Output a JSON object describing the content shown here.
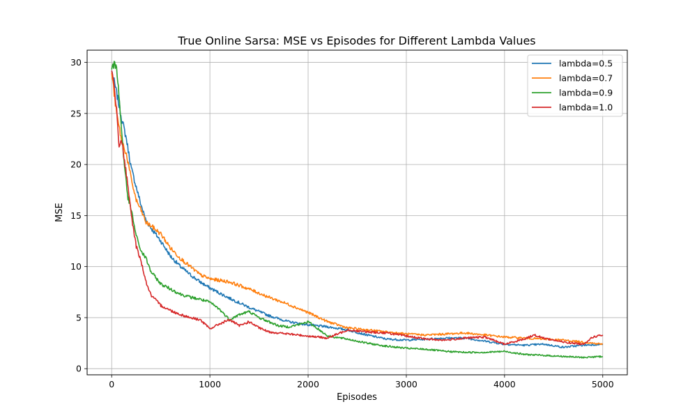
{
  "chart_data": {
    "type": "line",
    "title": "True Online Sarsa: MSE vs Episodes for Different Lambda Values",
    "xlabel": "Episodes",
    "ylabel": "MSE",
    "xlim": [
      -250,
      5250
    ],
    "ylim": [
      -0.6,
      31.2
    ],
    "xticks": [
      0,
      1000,
      2000,
      3000,
      4000,
      5000
    ],
    "yticks": [
      0,
      5,
      10,
      15,
      20,
      25,
      30
    ],
    "grid": true,
    "legend_position": "top-right",
    "series": [
      {
        "name": "lambda=0.5",
        "color": "#1f77b4",
        "x": [
          0,
          50,
          100,
          150,
          200,
          250,
          300,
          350,
          400,
          500,
          600,
          700,
          800,
          900,
          1000,
          1200,
          1400,
          1600,
          1800,
          2000,
          2200,
          2400,
          2600,
          2800,
          3000,
          3200,
          3400,
          3600,
          3800,
          4000,
          4200,
          4400,
          4600,
          4800,
          5000
        ],
        "y": [
          29.2,
          27.0,
          24.6,
          22.5,
          19.6,
          17.8,
          16.0,
          14.5,
          13.8,
          12.5,
          11.0,
          10.0,
          9.2,
          8.5,
          7.9,
          6.9,
          6.0,
          5.2,
          4.6,
          4.3,
          4.1,
          3.8,
          3.3,
          2.9,
          2.8,
          2.9,
          3.0,
          3.0,
          2.7,
          2.4,
          2.3,
          2.4,
          2.1,
          2.3,
          2.4
        ]
      },
      {
        "name": "lambda=0.7",
        "color": "#ff7f0e",
        "x": [
          0,
          50,
          100,
          150,
          200,
          250,
          300,
          350,
          400,
          500,
          600,
          700,
          800,
          900,
          1000,
          1200,
          1400,
          1600,
          1800,
          2000,
          2200,
          2400,
          2600,
          2800,
          3000,
          3200,
          3400,
          3600,
          3800,
          4000,
          4200,
          4400,
          4600,
          4800,
          5000
        ],
        "y": [
          29.0,
          25.0,
          22.4,
          21.0,
          18.5,
          16.5,
          15.5,
          14.3,
          14.0,
          13.2,
          11.8,
          10.8,
          10.0,
          9.2,
          8.8,
          8.5,
          7.8,
          7.0,
          6.3,
          5.5,
          4.6,
          4.0,
          3.8,
          3.6,
          3.4,
          3.3,
          3.4,
          3.5,
          3.3,
          3.1,
          3.0,
          2.9,
          2.8,
          2.6,
          2.4
        ]
      },
      {
        "name": "lambda=0.9",
        "color": "#2ca02c",
        "x": [
          0,
          25,
          50,
          80,
          120,
          160,
          200,
          250,
          300,
          350,
          400,
          500,
          600,
          700,
          800,
          900,
          1000,
          1100,
          1200,
          1300,
          1400,
          1500,
          1600,
          1700,
          1800,
          1900,
          2000,
          2200,
          2400,
          2600,
          2800,
          3000,
          3200,
          3400,
          3600,
          3800,
          4000,
          4200,
          4400,
          4600,
          4800,
          5000
        ],
        "y": [
          29.3,
          29.8,
          29.7,
          26.0,
          21.0,
          17.0,
          15.5,
          13.0,
          11.5,
          10.8,
          9.5,
          8.3,
          7.8,
          7.3,
          7.0,
          6.8,
          6.5,
          5.8,
          4.8,
          5.3,
          5.6,
          5.0,
          4.6,
          4.2,
          4.1,
          4.3,
          4.6,
          3.2,
          2.9,
          2.5,
          2.2,
          2.0,
          1.9,
          1.7,
          1.6,
          1.6,
          1.7,
          1.4,
          1.3,
          1.2,
          1.1,
          1.2
        ]
      },
      {
        "name": "lambda=1.0",
        "color": "#d62728",
        "x": [
          0,
          25,
          50,
          75,
          100,
          150,
          200,
          250,
          300,
          350,
          400,
          500,
          600,
          700,
          800,
          900,
          1000,
          1100,
          1200,
          1300,
          1400,
          1500,
          1600,
          1800,
          2000,
          2200,
          2400,
          2600,
          2800,
          3000,
          3200,
          3400,
          3600,
          3800,
          4000,
          4200,
          4300,
          4400,
          4600,
          4800,
          4900,
          5000
        ],
        "y": [
          29.2,
          27.5,
          25.5,
          22.0,
          22.5,
          19.0,
          15.0,
          12.0,
          10.5,
          8.5,
          7.2,
          6.2,
          5.7,
          5.3,
          5.0,
          4.8,
          3.9,
          4.4,
          4.8,
          4.2,
          4.6,
          4.0,
          3.6,
          3.4,
          3.2,
          3.0,
          3.8,
          3.6,
          3.5,
          3.2,
          2.9,
          2.8,
          3.0,
          3.1,
          2.4,
          2.9,
          3.3,
          3.0,
          2.6,
          2.4,
          3.1,
          3.3
        ]
      }
    ]
  }
}
